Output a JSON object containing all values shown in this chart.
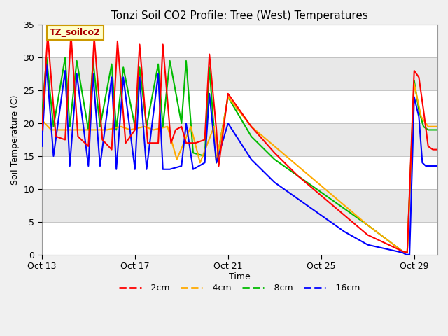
{
  "title": "Tonzi Soil CO2 Profile: Tree (West) Temperatures",
  "xlabel": "Time",
  "ylabel": "Soil Temperature (C)",
  "ylim": [
    0,
    35
  ],
  "xlim_days": [
    0,
    17
  ],
  "yticks": [
    0,
    5,
    10,
    15,
    20,
    25,
    30,
    35
  ],
  "xtick_labels": [
    "Oct 13",
    "Oct 17",
    "Oct 21",
    "Oct 25",
    "Oct 29"
  ],
  "xtick_positions": [
    0,
    4,
    8,
    12,
    16
  ],
  "fig_facecolor": "#f0f0f0",
  "plot_bg": "#e8e8e8",
  "band_colors": [
    "#ffffff",
    "#e8e8e8"
  ],
  "title_fontsize": 11,
  "tick_fontsize": 9,
  "label_fontsize": 9,
  "legend_entries": [
    "-2cm",
    "-4cm",
    "-8cm",
    "-16cm"
  ],
  "legend_colors": [
    "#ff0000",
    "#ffaa00",
    "#00bb00",
    "#0000ff"
  ],
  "annotation_text": "TZ_soilco2",
  "annotation_color": "#aa0000",
  "annotation_bg": "#ffffcc",
  "annotation_border": "#cc9900",
  "series_red": {
    "x": [
      0,
      0.25,
      0.6,
      1.0,
      1.25,
      1.55,
      2.0,
      2.25,
      2.6,
      3.0,
      3.25,
      3.6,
      4.0,
      4.2,
      4.55,
      5.0,
      5.2,
      5.55,
      5.75,
      6.0,
      6.2,
      6.6,
      7.0,
      7.2,
      7.5,
      7.6,
      8.0,
      9.0,
      10.0,
      11.0,
      12.0,
      13.0,
      14.0,
      15.5,
      15.7,
      16.0,
      16.2,
      16.4,
      16.6,
      16.8,
      17.0
    ],
    "y": [
      19.0,
      33.5,
      18.0,
      17.5,
      33.5,
      18.0,
      16.5,
      33.0,
      17.5,
      16.0,
      32.5,
      17.0,
      19.0,
      32.0,
      17.0,
      17.0,
      32.0,
      17.0,
      19.0,
      19.5,
      17.0,
      17.0,
      17.5,
      30.5,
      19.0,
      13.5,
      24.5,
      19.5,
      15.5,
      12.0,
      9.0,
      6.0,
      3.0,
      0.5,
      0.3,
      28.0,
      27.0,
      22.0,
      16.5,
      16.0,
      16.0
    ]
  },
  "series_orange": {
    "x": [
      0,
      0.4,
      0.8,
      1.4,
      1.8,
      2.4,
      2.8,
      3.4,
      3.8,
      4.4,
      4.8,
      5.4,
      5.8,
      6.4,
      6.8,
      7.4,
      7.5,
      8.0,
      9.0,
      10.0,
      11.0,
      12.0,
      13.0,
      14.0,
      15.5,
      15.7,
      16.0,
      16.3,
      16.6,
      17.0
    ],
    "y": [
      20.5,
      19.0,
      19.0,
      19.0,
      19.0,
      19.0,
      19.0,
      19.5,
      19.0,
      19.5,
      19.0,
      19.5,
      14.5,
      19.5,
      14.0,
      19.5,
      14.0,
      24.0,
      19.5,
      16.5,
      13.5,
      10.5,
      7.5,
      4.5,
      0.5,
      0.3,
      26.0,
      21.0,
      19.5,
      19.5
    ]
  },
  "series_green": {
    "x": [
      0,
      0.2,
      0.5,
      1.0,
      1.2,
      1.5,
      2.0,
      2.2,
      2.5,
      3.0,
      3.2,
      3.5,
      4.0,
      4.2,
      4.5,
      5.0,
      5.2,
      5.5,
      6.0,
      6.2,
      6.5,
      7.0,
      7.2,
      7.5,
      8.0,
      9.0,
      10.0,
      11.0,
      12.0,
      13.0,
      14.0,
      15.5,
      15.7,
      16.0,
      16.2,
      16.4,
      16.6,
      16.8,
      17.0
    ],
    "y": [
      21.0,
      30.0,
      19.5,
      30.0,
      19.5,
      29.5,
      19.0,
      29.5,
      19.5,
      29.0,
      19.0,
      28.5,
      19.5,
      28.5,
      19.5,
      29.0,
      19.5,
      29.5,
      20.0,
      29.5,
      15.5,
      15.0,
      28.5,
      14.0,
      24.0,
      18.0,
      14.5,
      12.0,
      9.5,
      7.0,
      4.5,
      0.5,
      0.3,
      26.5,
      22.0,
      19.5,
      19.0,
      19.0,
      19.0
    ]
  },
  "series_blue": {
    "x": [
      0,
      0.2,
      0.5,
      1.0,
      1.2,
      1.5,
      2.0,
      2.2,
      2.5,
      3.0,
      3.2,
      3.5,
      4.0,
      4.2,
      4.5,
      5.0,
      5.2,
      5.5,
      6.0,
      6.2,
      6.5,
      7.0,
      7.2,
      7.5,
      8.0,
      9.0,
      10.0,
      11.0,
      12.0,
      13.0,
      14.0,
      15.5,
      15.65,
      15.8,
      16.0,
      16.2,
      16.35,
      16.5,
      16.7,
      17.0
    ],
    "y": [
      16.5,
      29.0,
      15.0,
      28.0,
      13.5,
      27.5,
      13.5,
      27.5,
      13.5,
      27.0,
      13.0,
      27.0,
      13.0,
      27.0,
      13.0,
      27.5,
      13.0,
      13.0,
      13.5,
      20.0,
      13.0,
      14.0,
      24.5,
      14.0,
      20.0,
      14.5,
      11.0,
      8.5,
      6.0,
      3.5,
      1.5,
      0.3,
      0.0,
      0.0,
      24.0,
      21.0,
      14.0,
      13.5,
      13.5,
      13.5
    ]
  }
}
